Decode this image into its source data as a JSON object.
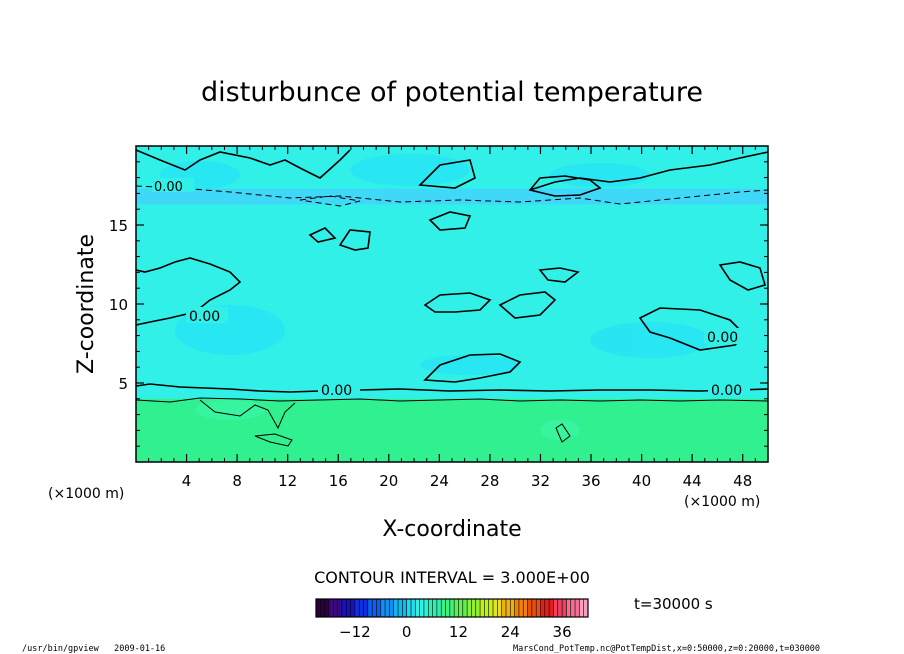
{
  "chart_data": {
    "type": "heatmap",
    "title": "disturbunce of potential temperature",
    "xlabel": "X-coordinate",
    "ylabel": "Z-coordinate",
    "x_unit_left": "(×1000 m)",
    "x_unit_right": "(×1000 m)",
    "xlim": [
      0,
      50
    ],
    "ylim": [
      0,
      20
    ],
    "x_ticks": [
      4,
      8,
      12,
      16,
      20,
      24,
      28,
      32,
      36,
      40,
      44,
      48
    ],
    "y_ticks": [
      5,
      10,
      15
    ],
    "contour_interval_text": "CONTOUR INTERVAL = 3.000E+00",
    "contour_labels": [
      "0.00",
      "0.00",
      "0.00",
      "0.00",
      "0.00"
    ],
    "time_text": "t=30000 s",
    "colorbar": {
      "range": [
        -21,
        42
      ],
      "ticks": [
        -12,
        0,
        12,
        24,
        36
      ],
      "colors": [
        "#2a0040",
        "#3b0a80",
        "#1a10c0",
        "#1030e0",
        "#1060f0",
        "#1090f0",
        "#10b8f0",
        "#20d8f0",
        "#30f0e0",
        "#30f0b0",
        "#40f080",
        "#60f050",
        "#90f030",
        "#c0f020",
        "#e8e020",
        "#f0b010",
        "#f08010",
        "#e85010",
        "#e02020",
        "#f04060",
        "#f07090",
        "#f8a0c0"
      ]
    },
    "regions": [
      {
        "name": "lower layer",
        "z_range": [
          0,
          4
        ],
        "color": "#30f090"
      },
      {
        "name": "middle layer",
        "z_range": [
          4,
          17
        ],
        "color": "#30f0e8"
      },
      {
        "name": "upper band",
        "z_range": [
          16.3,
          17.3
        ],
        "color": "#40d8f8"
      },
      {
        "name": "top layer",
        "z_range": [
          17.3,
          20
        ],
        "color": "#30f0e8"
      }
    ]
  },
  "footer": {
    "left": "/usr/bin/gpview   2009-01-16",
    "right": "MarsCond_PotTemp.nc@PotTempDist,x=0:50000,z=0:20000,t=030000"
  }
}
